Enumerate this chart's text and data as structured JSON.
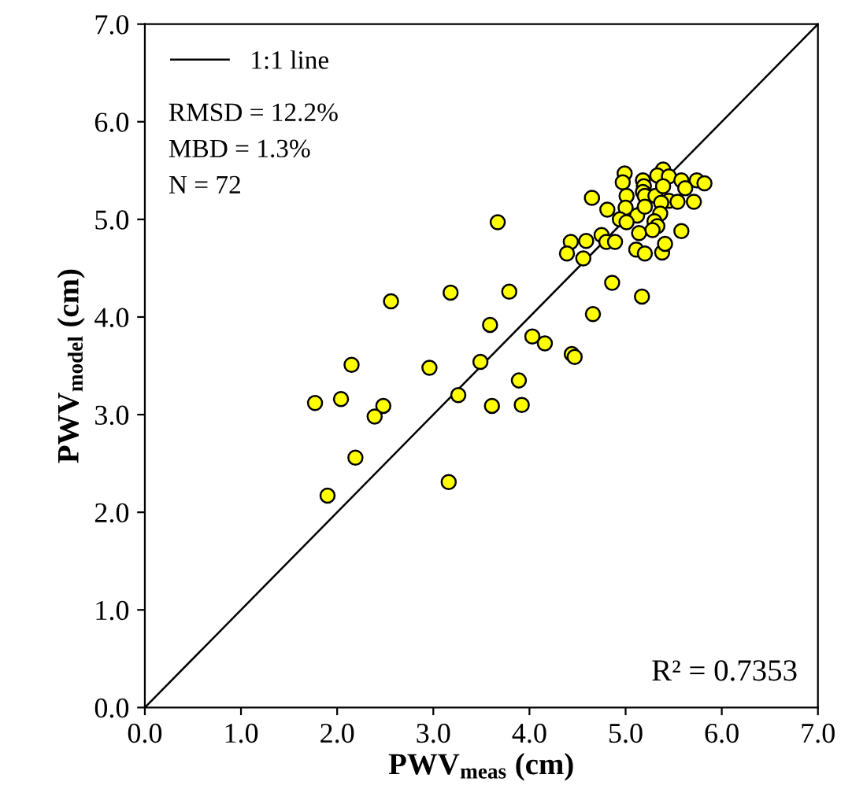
{
  "chart_data": {
    "type": "scatter",
    "xlabel": "PWV$_{meas}$ (cm)",
    "ylabel": "PWV$_{model}$ (cm)",
    "xlim": [
      0,
      7
    ],
    "ylim": [
      0,
      7
    ],
    "xticks": [
      {
        "value": 0,
        "label": "0.0"
      },
      {
        "value": 1,
        "label": "1.0"
      },
      {
        "value": 2,
        "label": "2.0"
      },
      {
        "value": 3,
        "label": "3.0"
      },
      {
        "value": 4,
        "label": "4.0"
      },
      {
        "value": 5,
        "label": "5.0"
      },
      {
        "value": 6,
        "label": "6.0"
      },
      {
        "value": 7,
        "label": "7.0"
      }
    ],
    "yticks": [
      {
        "value": 0,
        "label": "0.0"
      },
      {
        "value": 1,
        "label": "1.0"
      },
      {
        "value": 2,
        "label": "2.0"
      },
      {
        "value": 3,
        "label": "3.0"
      },
      {
        "value": 4,
        "label": "4.0"
      },
      {
        "value": 5,
        "label": "5.0"
      },
      {
        "value": 6,
        "label": "6.0"
      },
      {
        "value": 7,
        "label": "7.0"
      }
    ],
    "grid": false,
    "legend": "top left",
    "marker": "circle",
    "series": [
      {
        "color": "#ffff00",
        "x": [
          4.99,
          4.97,
          5.39,
          5.33,
          5.45,
          5.18,
          5.19,
          5.58,
          5.74,
          5.82,
          5.62,
          4.65,
          5.01,
          5.18,
          5.2,
          5.31,
          5.39,
          5.45,
          5.54,
          5.71,
          5.37,
          4.81,
          5.0,
          5.12,
          5.2,
          5.36,
          4.94,
          5.01,
          5.3,
          5.33,
          5.14,
          5.28,
          5.58,
          4.43,
          4.59,
          4.75,
          4.8,
          4.89,
          4.39,
          4.56,
          5.11,
          5.2,
          5.38,
          5.41,
          4.86,
          5.17,
          4.66,
          2.56,
          3.18,
          3.79,
          3.59,
          4.03,
          4.16,
          2.15,
          2.96,
          3.49,
          3.89,
          1.77,
          2.04,
          2.48,
          2.39,
          3.26,
          3.61,
          3.92,
          2.19,
          1.9,
          3.16,
          4.44,
          4.47,
          3.67
        ],
        "values": [
          5.47,
          5.38,
          5.51,
          5.45,
          5.44,
          5.4,
          5.34,
          5.4,
          5.4,
          5.37,
          5.32,
          5.22,
          5.24,
          5.28,
          5.24,
          5.24,
          5.34,
          5.19,
          5.18,
          5.18,
          5.17,
          5.1,
          5.12,
          5.04,
          5.13,
          5.06,
          5.0,
          4.97,
          4.98,
          4.93,
          4.86,
          4.89,
          4.88,
          4.77,
          4.78,
          4.84,
          4.77,
          4.77,
          4.65,
          4.6,
          4.69,
          4.65,
          4.66,
          4.75,
          4.35,
          4.21,
          4.03,
          4.16,
          4.25,
          4.26,
          3.92,
          3.8,
          3.73,
          3.51,
          3.48,
          3.54,
          3.35,
          3.12,
          3.16,
          3.09,
          2.98,
          3.2,
          3.09,
          3.1,
          2.56,
          2.17,
          2.31,
          3.62,
          3.59,
          4.97
        ]
      },
      {
        "type": "line",
        "name": "1:1 line",
        "color": "#000000",
        "x": [
          0,
          7
        ],
        "values": [
          0,
          7
        ],
        "line_style": "solid",
        "marker": "none"
      }
    ],
    "annotations": [
      "RMSD = 12.2%",
      "MBD = 1.3%",
      "N = 72",
      {
        "text": "R² = 0.7353"
      }
    ]
  }
}
